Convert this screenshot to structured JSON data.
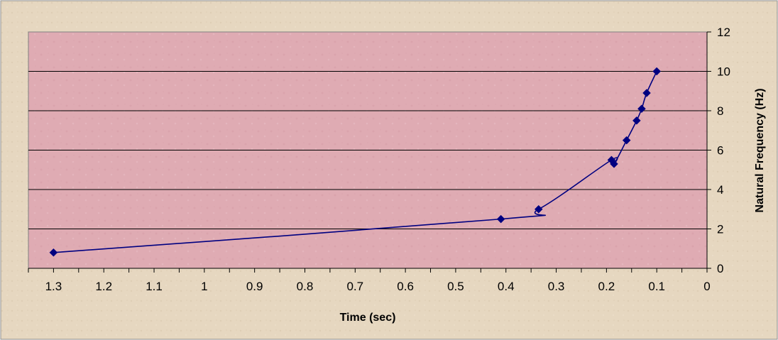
{
  "chart_data": {
    "type": "line",
    "title": "",
    "xlabel": "Time (sec)",
    "ylabel": "Natural Frequency (Hz)",
    "x_axis": {
      "min": 0,
      "max": 1.35,
      "reversed": true,
      "ticks": [
        1.3,
        1.2,
        1.1,
        1,
        0.9,
        0.8,
        0.7,
        0.6,
        0.5,
        0.4,
        0.3,
        0.2,
        0.1,
        0
      ],
      "tick_labels": [
        "1.3",
        "1.2",
        "1.1",
        "1",
        "0.9",
        "0.8",
        "0.7",
        "0.6",
        "0.5",
        "0.4",
        "0.3",
        "0.2",
        "0.1",
        "0"
      ]
    },
    "y_axis": {
      "min": 0,
      "max": 12,
      "position": "right",
      "ticks": [
        0,
        2,
        4,
        6,
        8,
        10,
        12
      ],
      "tick_labels": [
        "0",
        "2",
        "4",
        "6",
        "8",
        "10",
        "12"
      ]
    },
    "grid": true,
    "legend": "none",
    "series": [
      {
        "marker": "diamond",
        "color": "#000080",
        "smooth": true,
        "x": [
          1.3,
          0.41,
          0.335,
          0.19,
          0.185,
          0.16,
          0.14,
          0.13,
          0.12,
          0.1
        ],
        "y": [
          0.8,
          2.5,
          3.0,
          5.5,
          5.3,
          6.5,
          7.5,
          8.1,
          8.9,
          10.0
        ]
      }
    ],
    "colors": {
      "outer_background": "#e6d7c0",
      "plot_background": "#dfabb3",
      "gridline": "#000000",
      "line": "#000080"
    }
  }
}
